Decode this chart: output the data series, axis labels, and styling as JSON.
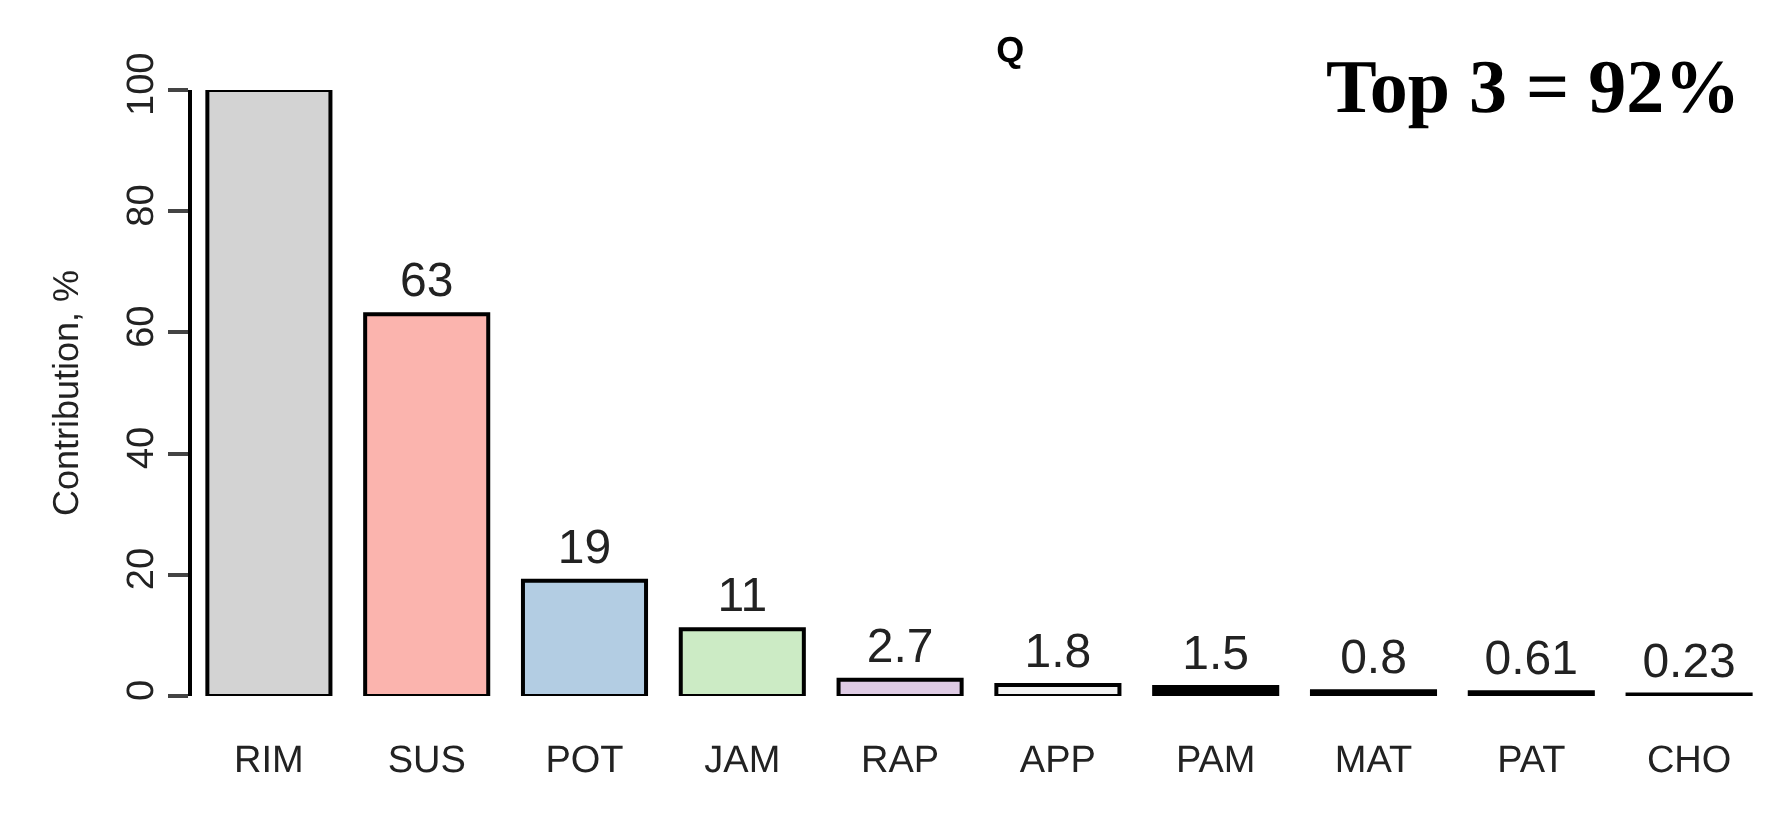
{
  "chart_data": {
    "type": "bar",
    "title": "Q",
    "ylabel": "Contribution, %",
    "categories": [
      "RIM",
      "SUS",
      "POT",
      "JAM",
      "RAP",
      "APP",
      "PAM",
      "MAT",
      "PAT",
      "CHO"
    ],
    "values": [
      100,
      63,
      19,
      11,
      2.7,
      1.8,
      1.5,
      0.8,
      0.61,
      0.23
    ],
    "value_labels": [
      null,
      "63",
      "19",
      "11",
      "2.7",
      "1.8",
      "1.5",
      "0.8",
      "0.61",
      "0.23"
    ],
    "colors": [
      "#d3d3d3",
      "#fbb4ae",
      "#b3cde3",
      "#ccebc5",
      "#decbe4",
      "#f2f2f2",
      "#000000",
      "#000000",
      "#000000",
      "#000000"
    ],
    "ylim": [
      0,
      100
    ],
    "yticks": [
      0,
      20,
      40,
      60,
      80,
      100
    ],
    "annotations": [
      "Top 3 = 92%"
    ]
  }
}
